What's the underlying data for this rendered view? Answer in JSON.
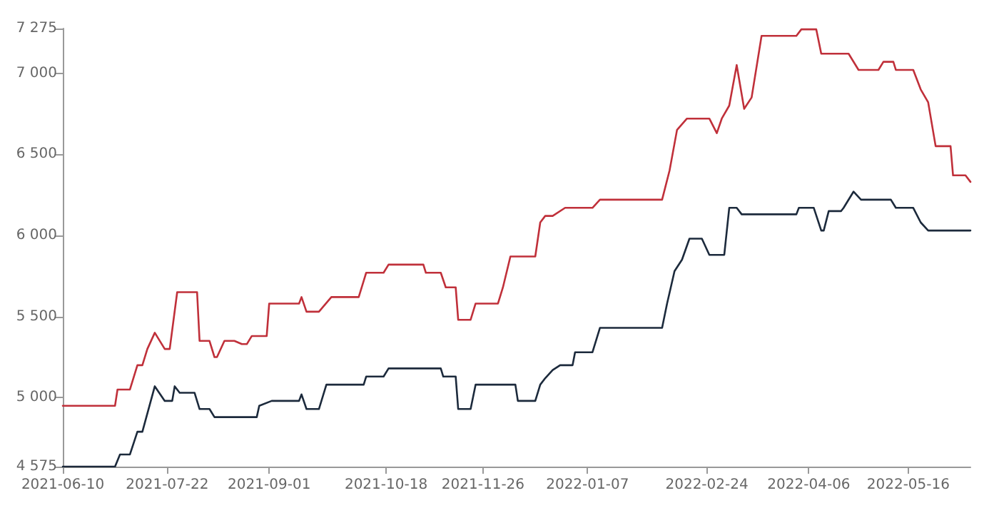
{
  "chart_data": {
    "type": "line",
    "xlim": [
      "2021-06-10",
      "2022-06-10"
    ],
    "xticks": [
      "2021-06-10",
      "2021-07-22",
      "2021-09-01",
      "2021-10-18",
      "2021-11-26",
      "2022-01-07",
      "2022-02-24",
      "2022-04-06",
      "2022-05-16"
    ],
    "ylim": [
      4575,
      7275
    ],
    "yticks": [
      {
        "value": 4575,
        "label": "4 575"
      },
      {
        "value": 5000,
        "label": "5 000"
      },
      {
        "value": 5500,
        "label": "5 500"
      },
      {
        "value": 6000,
        "label": "6 000"
      },
      {
        "value": 6500,
        "label": "6 500"
      },
      {
        "value": 7000,
        "label": "7 000"
      },
      {
        "value": 7275,
        "label": "7 275"
      }
    ],
    "grid": false,
    "marker": "none",
    "line_style": "solid",
    "series": [
      {
        "color": "#c0303a",
        "x": [
          "2021-06-10",
          "2021-07-01",
          "2021-07-02",
          "2021-07-07",
          "2021-07-10",
          "2021-07-12",
          "2021-07-14",
          "2021-07-17",
          "2021-07-21",
          "2021-07-23",
          "2021-07-26",
          "2021-08-03",
          "2021-08-04",
          "2021-08-08",
          "2021-08-10",
          "2021-08-11",
          "2021-08-14",
          "2021-08-18",
          "2021-08-21",
          "2021-08-23",
          "2021-08-25",
          "2021-08-31",
          "2021-09-01",
          "2021-09-13",
          "2021-09-14",
          "2021-09-16",
          "2021-09-21",
          "2021-09-26",
          "2021-10-07",
          "2021-10-10",
          "2021-10-17",
          "2021-10-19",
          "2021-11-02",
          "2021-11-03",
          "2021-11-09",
          "2021-11-11",
          "2021-11-15",
          "2021-11-16",
          "2021-11-21",
          "2021-11-23",
          "2021-12-02",
          "2021-12-04",
          "2021-12-07",
          "2021-12-17",
          "2021-12-19",
          "2021-12-21",
          "2021-12-24",
          "2021-12-29",
          "2022-01-09",
          "2022-01-12",
          "2022-02-06",
          "2022-02-09",
          "2022-02-12",
          "2022-02-16",
          "2022-02-25",
          "2022-02-28",
          "2022-03-02",
          "2022-03-05",
          "2022-03-08",
          "2022-03-11",
          "2022-03-14",
          "2022-03-18",
          "2022-04-01",
          "2022-04-03",
          "2022-04-09",
          "2022-04-11",
          "2022-04-22",
          "2022-04-26",
          "2022-05-04",
          "2022-05-06",
          "2022-05-10",
          "2022-05-11",
          "2022-05-18",
          "2022-05-21",
          "2022-05-24",
          "2022-05-27",
          "2022-06-02",
          "2022-06-03",
          "2022-06-08",
          "2022-06-10"
        ],
        "values": [
          4950,
          4950,
          5050,
          5050,
          5200,
          5200,
          5300,
          5400,
          5300,
          5300,
          5650,
          5650,
          5350,
          5350,
          5250,
          5250,
          5350,
          5350,
          5330,
          5330,
          5380,
          5380,
          5580,
          5580,
          5620,
          5530,
          5530,
          5620,
          5620,
          5770,
          5770,
          5820,
          5820,
          5770,
          5770,
          5680,
          5680,
          5480,
          5480,
          5580,
          5580,
          5680,
          5870,
          5870,
          6080,
          6120,
          6120,
          6170,
          6170,
          6220,
          6220,
          6400,
          6650,
          6720,
          6720,
          6630,
          6720,
          6800,
          7050,
          6780,
          6850,
          7230,
          7230,
          7270,
          7270,
          7120,
          7120,
          7020,
          7020,
          7070,
          7070,
          7020,
          7020,
          6900,
          6820,
          6550,
          6550,
          6370,
          6370,
          6330
        ]
      },
      {
        "color": "#1c2a3c",
        "x": [
          "2021-06-10",
          "2021-07-01",
          "2021-07-03",
          "2021-07-07",
          "2021-07-10",
          "2021-07-12",
          "2021-07-17",
          "2021-07-21",
          "2021-07-24",
          "2021-07-25",
          "2021-07-27",
          "2021-08-02",
          "2021-08-04",
          "2021-08-08",
          "2021-08-10",
          "2021-08-27",
          "2021-08-28",
          "2021-09-02",
          "2021-09-13",
          "2021-09-14",
          "2021-09-16",
          "2021-09-21",
          "2021-09-24",
          "2021-10-09",
          "2021-10-10",
          "2021-10-17",
          "2021-10-19",
          "2021-11-09",
          "2021-11-10",
          "2021-11-15",
          "2021-11-16",
          "2021-11-21",
          "2021-11-23",
          "2021-12-09",
          "2021-12-10",
          "2021-12-17",
          "2021-12-19",
          "2021-12-21",
          "2021-12-24",
          "2021-12-27",
          "2022-01-01",
          "2022-01-02",
          "2022-01-09",
          "2022-01-12",
          "2022-02-06",
          "2022-02-08",
          "2022-02-11",
          "2022-02-14",
          "2022-02-17",
          "2022-02-22",
          "2022-02-25",
          "2022-03-03",
          "2022-03-05",
          "2022-03-08",
          "2022-03-10",
          "2022-04-01",
          "2022-04-02",
          "2022-04-08",
          "2022-04-11",
          "2022-04-12",
          "2022-04-14",
          "2022-04-19",
          "2022-04-20",
          "2022-04-24",
          "2022-04-27",
          "2022-05-09",
          "2022-05-11",
          "2022-05-18",
          "2022-05-21",
          "2022-05-24",
          "2022-06-10"
        ],
        "values": [
          4575,
          4575,
          4650,
          4650,
          4790,
          4790,
          5070,
          4980,
          4980,
          5070,
          5030,
          5030,
          4930,
          4930,
          4880,
          4880,
          4950,
          4980,
          4980,
          5020,
          4930,
          4930,
          5080,
          5080,
          5130,
          5130,
          5180,
          5180,
          5130,
          5130,
          4930,
          4930,
          5080,
          5080,
          4980,
          4980,
          5080,
          5120,
          5170,
          5200,
          5200,
          5280,
          5280,
          5430,
          5430,
          5580,
          5780,
          5850,
          5980,
          5980,
          5880,
          5880,
          6170,
          6170,
          6130,
          6130,
          6170,
          6170,
          6030,
          6030,
          6150,
          6150,
          6170,
          6270,
          6220,
          6220,
          6170,
          6170,
          6080,
          6030,
          6030
        ]
      }
    ]
  }
}
